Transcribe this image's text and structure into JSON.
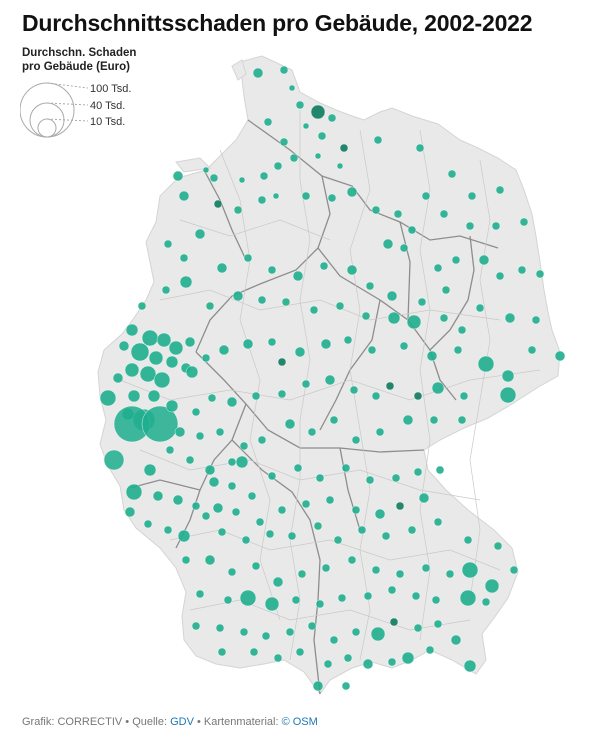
{
  "title": "Durchschnittsschaden pro Gebäude, 2002-2022",
  "legend": {
    "title_line1": "Durchschn. Schaden",
    "title_line2": "pro Gebäude (Euro)",
    "items": [
      {
        "label": "100 Tsd.",
        "value": 100000
      },
      {
        "label": "40 Tsd.",
        "value": 40000
      },
      {
        "label": "10 Tsd.",
        "value": 10000
      }
    ]
  },
  "colors": {
    "land": "#e9e9e9",
    "borders": "#c8c8c8",
    "state_borders": "#8a8a8a",
    "bubble": "#1fae8e",
    "bubble_dark": "#0e7a5f",
    "link": "#1f77b4"
  },
  "footer": {
    "prefix": "Grafik: CORRECTIV • Quelle: ",
    "source": "GDV",
    "middle": " • Kartenmaterial: ",
    "map": "© OSM"
  }
}
